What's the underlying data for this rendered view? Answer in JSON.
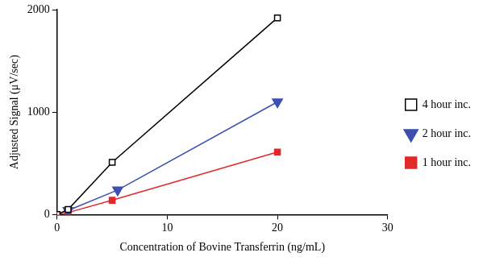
{
  "chart_data": {
    "type": "line",
    "x_label": "Concentration of Bovine Transferrin (ng/mL)",
    "y_label": "Adjusted Signal (μV/sec)",
    "xlim": [
      0,
      30
    ],
    "xticks": [
      0,
      10,
      20,
      30
    ],
    "ylim": [
      0,
      2000
    ],
    "yticks": [
      0,
      1000,
      2000
    ],
    "grid": false,
    "legend": "right",
    "series": [
      {
        "name": "4 hour inc.",
        "color": "#000000",
        "marker": "open_square",
        "x": [
          0,
          1,
          5,
          20
        ],
        "values": [
          0,
          50,
          510,
          1920
        ]
      },
      {
        "name": "2 hour inc.",
        "color": "#3b4fb0",
        "marker": "triangle_down",
        "x": [
          1,
          5.5,
          20
        ],
        "values": [
          40,
          240,
          1100
        ]
      },
      {
        "name": "1 hour inc.",
        "color": "#e02a2a",
        "marker": "square",
        "x": [
          0,
          1,
          5,
          20
        ],
        "values": [
          0,
          20,
          140,
          610
        ]
      }
    ]
  }
}
